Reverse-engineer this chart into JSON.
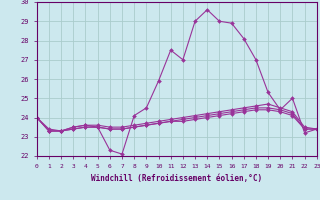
{
  "xlabel": "Windchill (Refroidissement éolien,°C)",
  "bg_color": "#cce8ee",
  "grid_color": "#aacccc",
  "line_color": "#993399",
  "x_hours": [
    0,
    1,
    2,
    3,
    4,
    5,
    6,
    7,
    8,
    9,
    10,
    11,
    12,
    13,
    14,
    15,
    16,
    17,
    18,
    19,
    20,
    21,
    22,
    23
  ],
  "series": [
    [
      24.0,
      23.4,
      23.3,
      23.5,
      23.6,
      23.5,
      22.3,
      22.1,
      24.1,
      24.5,
      25.9,
      27.5,
      27.0,
      29.0,
      29.6,
      29.0,
      28.9,
      28.1,
      27.0,
      25.3,
      24.4,
      25.0,
      23.2,
      23.4
    ],
    [
      24.0,
      23.3,
      23.3,
      23.5,
      23.6,
      23.6,
      23.5,
      23.5,
      23.6,
      23.7,
      23.8,
      23.9,
      24.0,
      24.1,
      24.2,
      24.3,
      24.4,
      24.5,
      24.6,
      24.7,
      24.5,
      24.3,
      23.5,
      23.4
    ],
    [
      24.0,
      23.3,
      23.3,
      23.4,
      23.5,
      23.5,
      23.4,
      23.4,
      23.5,
      23.6,
      23.7,
      23.8,
      23.9,
      24.0,
      24.1,
      24.2,
      24.3,
      24.4,
      24.5,
      24.5,
      24.4,
      24.2,
      23.4,
      23.4
    ],
    [
      24.0,
      23.3,
      23.3,
      23.4,
      23.5,
      23.5,
      23.4,
      23.4,
      23.5,
      23.6,
      23.7,
      23.8,
      23.8,
      23.9,
      24.0,
      24.1,
      24.2,
      24.3,
      24.4,
      24.4,
      24.3,
      24.1,
      23.4,
      23.4
    ]
  ],
  "ylim": [
    22,
    30
  ],
  "yticks": [
    22,
    23,
    24,
    25,
    26,
    27,
    28,
    29,
    30
  ],
  "xlim": [
    0,
    23
  ]
}
